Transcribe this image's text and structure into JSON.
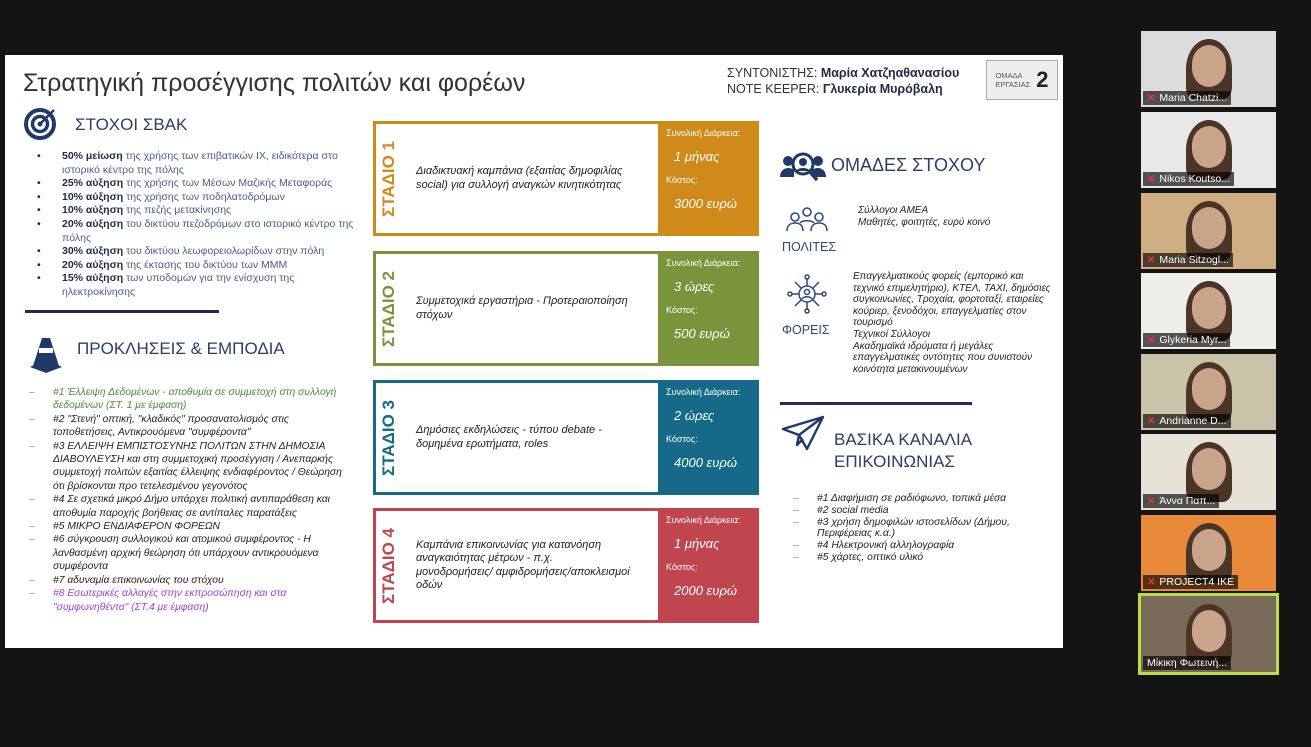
{
  "slide": {
    "title": "Στρατηγική προσέγγισης πολιτών και φορέων",
    "coordinator_label": "ΣΥΝΤΟΝΙΣΤΗΣ:",
    "coordinator": "Μαρία Χατζηαθανασίου",
    "note_keeper_label": "NOTE KEEPER:",
    "note_keeper": "Γλυκερία Μυρόβαλη",
    "group_label_1": "ΟΜΑΔΑ",
    "group_label_2": "ΕΡΓΑΣΙΑΣ",
    "group_number": "2",
    "goals": {
      "title": "ΣΤΟΧΟΙ ΣΒΑΚ",
      "icon": "target-icon",
      "items": [
        {
          "bold": "50% μείωση",
          "text": " της χρήσης των επιβατικών ΙΧ, ειδικότερα στο ιστορικό κέντρο της πόλης"
        },
        {
          "bold": "25% αύξηση",
          "text": " της χρήσης των Μέσων Μαζικής Μεταφοράς"
        },
        {
          "bold": "10% αύξηση",
          "text": " της χρήσης των ποδηλατοδρόμων"
        },
        {
          "bold": "10% αύξηση",
          "text": " της πεζής μετακίνησης"
        },
        {
          "bold": "20% αύξηση",
          "text": " του δικτύου πεζοδρόμων στο ιστορικό κέντρο της πόλης"
        },
        {
          "bold": "30% αύξηση",
          "text": " του δικτύου λεωφορειολωρίδων στην πόλη"
        },
        {
          "bold": "20% αύξηση",
          "text": " της έκτασης του δικτύου των ΜΜΜ"
        },
        {
          "bold": "15% αύξηση",
          "text": " των υποδομών για την ενίσχυση της ηλεκτροκίνησης"
        }
      ]
    },
    "challenges": {
      "title": "ΠΡΟΚΛΗΣΕΙΣ & ΕΜΠΟΔΙΑ",
      "icon": "traffic-cone-icon",
      "items": [
        {
          "text": "#1 Έλλειψη Δεδομένων - αποθυμία σε συμμετοχή στη συλλογή δεδομένων (ΣΤ. 1 με έμφαση)",
          "color": "#4f8a3a"
        },
        {
          "text": "#2 \"Στενή\" οπτική, \"κλαδικός\" προσανατολισμός στις τοποθετήσεις, Αντικρουόμενα \"συμφέροντα\"",
          "color": "#222222"
        },
        {
          "text": "#3 ΕΛΛΕΙΨΗ ΕΜΠΙΣΤΟΣΥΝΗΣ ΠΟΛΙΤΩΝ ΣΤΗΝ ΔΗΜΟΣΙΑ ΔΙΑΒΟΥΛΕΥΣΗ και στη συμμετοχική προσέγγιση / Ανεπαρκής συμμετοχή πολιτών εξαιτίας έλλειψης ενδιαφέροντος / Θεώρηση ότι βρίσκονται προ τετελεσμένου γεγονότος",
          "color": "#222222"
        },
        {
          "text": "#4 Σε σχετικά μικρό Δήμο υπάρχει πολιτική αντιπαράθεση και αποθυμία παροχής βοήθειας σε αντίπαλες παρατάξεις",
          "color": "#222222"
        },
        {
          "text": "#5 ΜΙΚΡΟ ΕΝΔΙΑΦΕΡΟΝ ΦΟΡΕΩΝ",
          "color": "#222222"
        },
        {
          "text": "#6 σύγκρουση συλλογικού και ατομικού συμφέροντος - Η λανθασμένη αρχική θεώρηση ότι υπάρχουν αντικρουόμενα συμφέροντα",
          "color": "#222222"
        },
        {
          "text": "#7 αδυναμία επικοινωνίας του στόχου",
          "color": "#222222"
        },
        {
          "text": "#8 Εσωτερικές αλλαγές στην εκπροσώπηση και στα \"συμφωνηθέντα\" (ΣΤ.4 με έμφαση)",
          "color": "#a040e0"
        }
      ]
    },
    "stages": [
      {
        "label": "ΣΤΑΔΙΟ 1",
        "desc": "Διαδικτυακή καμπάνια (εξαιτίας δημοφιλίας social) για συλλογή αναγκών κινητικότητας",
        "duration_label": "Συνολική Διάρκεια:",
        "duration": "1 μήνας",
        "cost_label": "Κόστος:",
        "cost": "3000 ευρώ",
        "color": "#d08a1a"
      },
      {
        "label": "ΣΤΑΔΙΟ 2",
        "desc": "Συμμετοχικά εργαστήρια - Προτεραιοποίηση στόχων",
        "duration_label": "Συνολική Διάρκεια:",
        "duration": "3 ώρες",
        "cost_label": "Κόστος:",
        "cost": "500 ευρώ",
        "color": "#7a943c"
      },
      {
        "label": "ΣΤΑΔΙΟ 3",
        "desc": "Δημόσιες εκδηλώσεις - τύπου debate - δομημένα ερωτήματα, roles",
        "duration_label": "Συνολική Διάρκεια:",
        "duration": "2 ώρες",
        "cost_label": "Κόστος:",
        "cost": "4000 ευρώ",
        "color": "#156a8a"
      },
      {
        "label": "ΣΤΑΔΙΟ 4",
        "desc": "Καμπάνια επικοινωνίας για κατανόηση αναγκαιότητας μέτρων - π.χ. μονοδρομήσεις/ αμφιδρομήσεις/αποκλεισμοί οδών",
        "duration_label": "Συνολική Διάρκεια:",
        "duration": "1 μήνας",
        "cost_label": "Κόστος:",
        "cost": "2000 ευρώ",
        "color": "#c0454f"
      }
    ],
    "targets": {
      "title": "ΟΜΑΔΕΣ ΣΤΟΧΟΥ",
      "icon": "people-search-icon",
      "citizens": {
        "label": "ΠΟΛΙΤΕΣ",
        "icon": "people-icon",
        "lines": [
          "Σύλλογοι ΑΜΕΑ",
          "Μαθητές, φοιτητές, ευρύ κοινό"
        ]
      },
      "bodies": {
        "label": "ΦΟΡΕΙΣ",
        "icon": "network-icon",
        "lines": [
          "Επαγγελματικούς φορείς (εμπορικό και τεχνικό επιμελητήριο), ΚΤΕΛ, ΤΑΧΙ, δημόσιες συγκοινωνίες, Τροχαία, φορτοταξί, εταιρείες κούριερ, ξενοδόχοι, επαγγελματίες στον τουρισμό",
          "Τεχνικοί Σύλλογοι",
          "Ακαδημαϊκά ιδρύματα ή μεγάλες επαγγελματικές οντότητες που συνιστούν κοινότητα μετακινουμένων"
        ]
      }
    },
    "channels": {
      "title_1": "ΒΑΣΙΚΑ ΚΑΝΑΛΙΑ",
      "title_2": "ΕΠΙΚΟΙΝΩΝΙΑΣ",
      "icon": "paper-plane-icon",
      "items": [
        "#1 Διαφήμιση σε ραδιόφωνο, τοπικά μέσα",
        "#2 social media",
        "#3 χρήση δημοφιλών ιστοσελίδων (Δήμου, Περιφέρειας κ.α.)",
        "#4 Ηλεκτρονική αλληλογραφία",
        "#5 χάρτες, οπτικό υλικό"
      ]
    }
  },
  "participants": [
    {
      "name": "Maria Chatzi...",
      "muted": true,
      "bg": "#dcdcdc"
    },
    {
      "name": "Nikos Koutso...",
      "muted": true,
      "bg": "#e8e8e8"
    },
    {
      "name": "Maria Sitzogl...",
      "muted": true,
      "bg": "#cfae82"
    },
    {
      "name": "Glykeria Myr...",
      "muted": true,
      "bg": "#f0eeea"
    },
    {
      "name": "Andrianne D...",
      "muted": true,
      "bg": "#c9c4a8"
    },
    {
      "name": "Άννα Παπ...",
      "muted": true,
      "bg": "#e6e2d6"
    },
    {
      "name": "PROJECT4 IKE",
      "muted": true,
      "bg": "#e88a3a"
    },
    {
      "name": "Μίκικη Φωτεινή...",
      "muted": false,
      "bg": "#7a6a5a",
      "active": true
    }
  ]
}
